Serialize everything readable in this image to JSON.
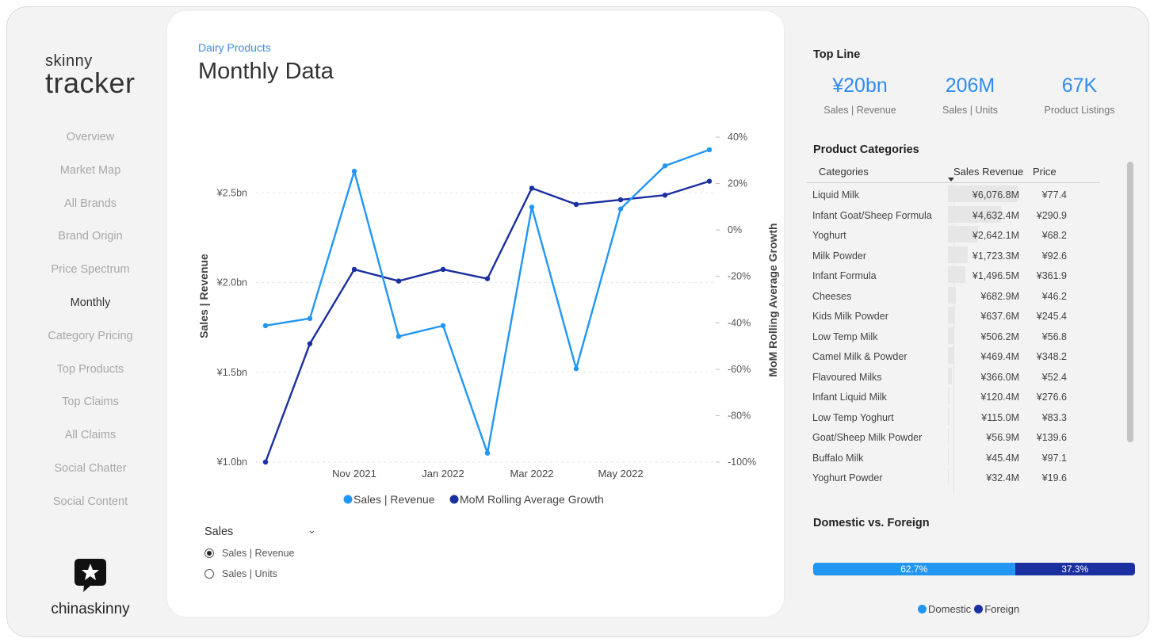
{
  "sidebar": {
    "brand_small": "skinny",
    "brand_large": "tracker",
    "items": [
      "Overview",
      "Market Map",
      "All Brands",
      "Brand Origin",
      "Price Spectrum",
      "Monthly",
      "Category Pricing",
      "Top Products",
      "Top Claims",
      "All Claims",
      "Social Chatter",
      "Social Content"
    ],
    "active_item": "Monthly",
    "logo_text": "chinaskinny"
  },
  "main": {
    "breadcrumb": "Dairy Products",
    "title": "Monthly Data",
    "selector": {
      "label": "Sales",
      "options": [
        "Sales | Revenue",
        "Sales | Units"
      ],
      "selected": "Sales | Revenue"
    }
  },
  "chart_data": {
    "type": "line",
    "x": [
      "2021-09",
      "2021-10",
      "2021-11",
      "2021-12",
      "2022-01",
      "2022-02",
      "2022-03",
      "2022-04",
      "2022-05",
      "2022-06",
      "2022-07"
    ],
    "x_tick_labels": [
      "Nov 2021",
      "Jan 2022",
      "Mar 2022",
      "May 2022"
    ],
    "x_tick_values": [
      "2021-11",
      "2022-01",
      "2022-03",
      "2022-05"
    ],
    "series": [
      {
        "name": "Sales | Revenue",
        "axis": "left",
        "color": "#2196f3",
        "values": [
          1.76,
          1.8,
          2.62,
          1.7,
          1.76,
          1.05,
          2.42,
          1.52,
          2.41,
          2.65,
          null
        ]
      },
      {
        "name": "MoM Rolling Average Growth",
        "axis": "right",
        "color": "#1a2fa0",
        "values": [
          -100,
          -49,
          -17,
          -22,
          -17,
          -21,
          18,
          11,
          13,
          null,
          21
        ]
      }
    ],
    "y_left": {
      "label": "Sales | Revenue",
      "ticks": [
        "¥1.0bn",
        "¥1.5bn",
        "¥2.0bn",
        "¥2.5bn"
      ],
      "tick_values": [
        1.0,
        1.5,
        2.0,
        2.5
      ],
      "range": [
        1.0,
        2.85
      ]
    },
    "y_right": {
      "label": "MoM Rolling Average Growth",
      "ticks": [
        "-100%",
        "-80%",
        "-60%",
        "-40%",
        "-20%",
        "0%",
        "20%",
        "40%"
      ],
      "tick_values": [
        -100,
        -80,
        -60,
        -40,
        -20,
        0,
        20,
        40
      ],
      "range": [
        -100,
        40
      ]
    },
    "grid": true,
    "legend": "bottom-center"
  },
  "chart_extra_points": {
    "revenue_last": {
      "x": "2022-07",
      "value": 2.74
    },
    "growth_june": {
      "x": "2022-06",
      "value": 15
    }
  },
  "top_line": {
    "title": "Top Line",
    "kpis": [
      {
        "value": "¥20bn",
        "label": "Sales | Revenue"
      },
      {
        "value": "206M",
        "label": "Sales | Units"
      },
      {
        "value": "67K",
        "label": "Product Listings"
      }
    ]
  },
  "categories": {
    "title": "Product Categories",
    "headers": [
      "Categories",
      "Sales Revenue",
      "Price"
    ],
    "rows": [
      {
        "name": "Liquid Milk",
        "revenue": "¥6,076.8M",
        "price": "¥77.4",
        "value": 6076.8
      },
      {
        "name": "Infant Goat/Sheep Formula",
        "revenue": "¥4,632.4M",
        "price": "¥290.9",
        "value": 4632.4
      },
      {
        "name": "Yoghurt",
        "revenue": "¥2,642.1M",
        "price": "¥68.2",
        "value": 2642.1
      },
      {
        "name": "Milk Powder",
        "revenue": "¥1,723.3M",
        "price": "¥92.6",
        "value": 1723.3
      },
      {
        "name": "Infant Formula",
        "revenue": "¥1,496.5M",
        "price": "¥361.9",
        "value": 1496.5
      },
      {
        "name": "Cheeses",
        "revenue": "¥682.9M",
        "price": "¥46.2",
        "value": 682.9
      },
      {
        "name": "Kids Milk Powder",
        "revenue": "¥637.6M",
        "price": "¥245.4",
        "value": 637.6
      },
      {
        "name": "Low Temp Milk",
        "revenue": "¥506.2M",
        "price": "¥56.8",
        "value": 506.2
      },
      {
        "name": "Camel Milk & Powder",
        "revenue": "¥469.4M",
        "price": "¥348.2",
        "value": 469.4
      },
      {
        "name": "Flavoured Milks",
        "revenue": "¥366.0M",
        "price": "¥52.4",
        "value": 366.0
      },
      {
        "name": "Infant Liquid Milk",
        "revenue": "¥120.4M",
        "price": "¥276.6",
        "value": 120.4
      },
      {
        "name": "Low Temp Yoghurt",
        "revenue": "¥115.0M",
        "price": "¥83.3",
        "value": 115.0
      },
      {
        "name": "Goat/Sheep Milk Powder",
        "revenue": "¥56.9M",
        "price": "¥139.6",
        "value": 56.9
      },
      {
        "name": "Buffalo Milk",
        "revenue": "¥45.4M",
        "price": "¥97.1",
        "value": 45.4
      },
      {
        "name": "Yoghurt Powder",
        "revenue": "¥32.4M",
        "price": "¥19.6",
        "value": 32.4
      }
    ]
  },
  "domestic_foreign": {
    "title": "Domestic vs. Foreign",
    "segments": [
      {
        "name": "Domestic",
        "percent": 62.7,
        "label": "62.7%",
        "color": "#2196f3"
      },
      {
        "name": "Foreign",
        "percent": 37.3,
        "label": "37.3%",
        "color": "#1a2fa0"
      }
    ]
  }
}
